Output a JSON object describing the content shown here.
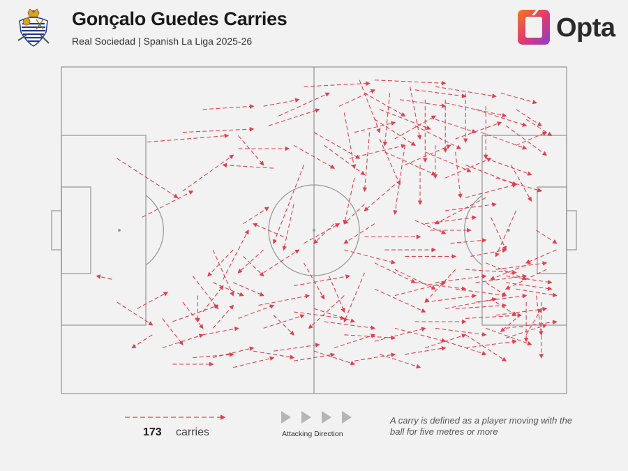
{
  "header": {
    "title": "Gonçalo Guedes Carries",
    "subtitle": "Real Sociedad | Spanish La Liga 2025-26",
    "brand": "Opta",
    "crest_icon": "real-sociedad-crest-icon",
    "brand_icon": "opta-logo-icon"
  },
  "legend": {
    "count": "173",
    "count_label": "carries",
    "direction_label": "Attacking Direction",
    "note": "A carry is defined as a player moving with the ball for five metres or more"
  },
  "colors": {
    "carry": "#e0404f",
    "pitch_line": "#9a9a9a",
    "background": "#f2f2f2",
    "direction_arrow": "#b5b5b5"
  },
  "chart_data": {
    "type": "scatter",
    "title": "Gonçalo Guedes Carries",
    "subtitle": "Real Sociedad | Spanish La Liga 2025-26",
    "total_carries": 173,
    "x_range": [
      0,
      100
    ],
    "y_range": [
      0,
      100
    ],
    "attacking_direction": "left-to-right",
    "grid": false,
    "carries": [
      [
        40,
        12,
        47,
        10
      ],
      [
        48,
        6,
        61,
        5
      ],
      [
        62,
        4,
        76,
        5
      ],
      [
        43,
        15,
        53,
        8
      ],
      [
        41,
        18,
        51,
        13
      ],
      [
        55,
        12,
        62,
        7
      ],
      [
        60,
        8,
        68,
        15
      ],
      [
        63,
        13,
        73,
        19
      ],
      [
        67,
        10,
        76,
        12
      ],
      [
        70,
        7,
        80,
        9
      ],
      [
        74,
        6,
        86,
        9
      ],
      [
        76,
        11,
        88,
        15
      ],
      [
        82,
        13,
        92,
        18
      ],
      [
        87,
        8,
        94,
        11
      ],
      [
        90,
        13,
        95,
        18
      ],
      [
        92,
        16,
        97,
        21
      ],
      [
        58,
        20,
        66,
        17
      ],
      [
        62,
        16,
        70,
        24
      ],
      [
        66,
        22,
        74,
        15
      ],
      [
        70,
        18,
        79,
        25
      ],
      [
        74,
        16,
        82,
        20
      ],
      [
        78,
        22,
        87,
        17
      ],
      [
        83,
        20,
        92,
        25
      ],
      [
        88,
        18,
        96,
        27
      ],
      [
        90,
        24,
        96,
        20
      ],
      [
        57,
        28,
        68,
        24
      ],
      [
        64,
        26,
        74,
        33
      ],
      [
        68,
        30,
        77,
        24
      ],
      [
        72,
        26,
        81,
        32
      ],
      [
        76,
        34,
        85,
        28
      ],
      [
        80,
        30,
        90,
        36
      ],
      [
        84,
        28,
        93,
        33
      ],
      [
        86,
        34,
        95,
        38
      ],
      [
        89,
        30,
        93,
        41
      ],
      [
        59,
        4,
        63,
        20
      ],
      [
        65,
        8,
        64,
        24
      ],
      [
        69,
        6,
        71,
        22
      ],
      [
        72,
        10,
        72,
        29
      ],
      [
        76,
        10,
        76,
        26
      ],
      [
        80,
        8,
        80,
        23
      ],
      [
        84,
        12,
        84,
        28
      ],
      [
        56,
        14,
        58,
        31
      ],
      [
        61,
        20,
        60,
        38
      ],
      [
        63,
        22,
        67,
        36
      ],
      [
        68,
        24,
        66,
        45
      ],
      [
        71,
        30,
        71,
        42
      ],
      [
        74,
        24,
        74,
        34
      ],
      [
        78,
        26,
        79,
        40
      ],
      [
        50,
        20,
        59,
        28
      ],
      [
        52,
        24,
        60,
        33
      ],
      [
        46,
        24,
        54,
        31
      ],
      [
        35,
        21,
        40,
        30
      ],
      [
        28,
        13,
        38,
        12
      ],
      [
        24,
        20,
        38,
        19
      ],
      [
        17,
        23,
        33,
        21
      ],
      [
        35,
        25,
        45,
        25
      ],
      [
        48,
        30,
        42,
        54
      ],
      [
        42,
        31,
        32,
        30
      ],
      [
        24,
        38,
        34,
        27
      ],
      [
        16,
        46,
        26,
        38
      ],
      [
        11,
        28,
        23,
        40
      ],
      [
        36,
        48,
        41,
        43
      ],
      [
        48,
        54,
        55,
        48
      ],
      [
        40,
        63,
        47,
        56
      ],
      [
        32,
        65,
        37,
        50
      ],
      [
        27,
        70,
        27,
        78
      ],
      [
        28,
        75,
        32,
        67
      ],
      [
        30,
        80,
        34,
        73
      ],
      [
        35,
        77,
        42,
        73
      ],
      [
        39,
        73,
        49,
        70
      ],
      [
        46,
        67,
        57,
        64
      ],
      [
        48,
        60,
        52,
        71
      ],
      [
        53,
        64,
        56,
        75
      ],
      [
        56,
        70,
        49,
        80
      ],
      [
        60,
        63,
        56,
        78
      ],
      [
        62,
        68,
        72,
        75
      ],
      [
        66,
        70,
        76,
        66
      ],
      [
        72,
        72,
        82,
        70
      ],
      [
        76,
        74,
        86,
        71
      ],
      [
        80,
        77,
        91,
        76
      ],
      [
        84,
        66,
        88,
        70
      ],
      [
        86,
        72,
        90,
        76
      ],
      [
        90,
        77,
        87,
        81
      ],
      [
        92,
        82,
        95,
        74
      ],
      [
        94,
        70,
        95,
        82
      ],
      [
        70,
        47,
        76,
        51
      ],
      [
        73,
        50,
        81,
        50
      ],
      [
        77,
        54,
        84,
        53
      ],
      [
        81,
        58,
        88,
        56
      ],
      [
        80,
        62,
        90,
        63
      ],
      [
        84,
        60,
        92,
        65
      ],
      [
        88,
        64,
        97,
        66
      ],
      [
        95,
        72,
        95,
        89
      ],
      [
        92,
        72,
        92,
        84
      ],
      [
        88,
        83,
        96,
        79
      ],
      [
        84,
        80,
        93,
        85
      ],
      [
        80,
        82,
        88,
        90
      ],
      [
        76,
        84,
        84,
        88
      ],
      [
        72,
        86,
        80,
        82
      ],
      [
        68,
        88,
        76,
        86
      ],
      [
        63,
        88,
        71,
        92
      ],
      [
        58,
        90,
        66,
        88
      ],
      [
        54,
        86,
        62,
        82
      ],
      [
        50,
        87,
        58,
        91
      ],
      [
        46,
        90,
        54,
        88
      ],
      [
        42,
        87,
        51,
        85
      ],
      [
        38,
        87,
        46,
        89
      ],
      [
        34,
        92,
        42,
        89
      ],
      [
        30,
        89,
        38,
        86
      ],
      [
        26,
        89,
        34,
        88
      ],
      [
        22,
        91,
        30,
        91
      ],
      [
        20,
        86,
        28,
        82
      ],
      [
        22,
        78,
        31,
        73
      ],
      [
        28,
        82,
        35,
        80
      ],
      [
        40,
        80,
        48,
        76
      ],
      [
        46,
        75,
        56,
        77
      ],
      [
        52,
        78,
        62,
        80
      ],
      [
        56,
        82,
        66,
        83
      ],
      [
        62,
        84,
        72,
        80
      ],
      [
        66,
        80,
        76,
        84
      ],
      [
        70,
        78,
        80,
        78
      ],
      [
        74,
        80,
        84,
        82
      ],
      [
        78,
        74,
        88,
        73
      ],
      [
        82,
        72,
        92,
        70
      ],
      [
        86,
        76,
        96,
        74
      ],
      [
        88,
        80,
        98,
        78
      ],
      [
        60,
        52,
        71,
        52
      ],
      [
        64,
        56,
        74,
        56
      ],
      [
        68,
        58,
        78,
        58
      ],
      [
        72,
        48,
        82,
        46
      ],
      [
        76,
        44,
        86,
        42
      ],
      [
        80,
        40,
        90,
        36
      ],
      [
        85,
        46,
        88,
        56
      ],
      [
        90,
        44,
        86,
        58
      ],
      [
        93,
        60,
        85,
        65
      ],
      [
        96,
        62,
        88,
        68
      ],
      [
        98,
        56,
        92,
        60
      ],
      [
        94,
        50,
        98,
        54
      ],
      [
        78,
        62,
        72,
        72
      ],
      [
        84,
        40,
        74,
        48
      ],
      [
        66,
        36,
        60,
        44
      ],
      [
        60,
        42,
        56,
        48
      ],
      [
        58,
        34,
        56,
        48
      ],
      [
        62,
        48,
        56,
        54
      ],
      [
        54,
        48,
        50,
        54
      ],
      [
        46,
        42,
        44,
        56
      ],
      [
        44,
        52,
        38,
        48
      ],
      [
        40,
        56,
        35,
        63
      ],
      [
        36,
        58,
        40,
        64
      ],
      [
        30,
        56,
        34,
        70
      ],
      [
        26,
        64,
        31,
        74
      ],
      [
        24,
        72,
        28,
        80
      ],
      [
        20,
        77,
        24,
        85
      ],
      [
        18,
        82,
        14,
        86
      ],
      [
        15,
        74,
        21,
        69
      ],
      [
        11,
        72,
        18,
        79
      ],
      [
        10,
        65,
        7,
        64
      ],
      [
        34,
        56,
        29,
        64
      ],
      [
        30,
        66,
        36,
        70
      ],
      [
        42,
        76,
        46,
        82
      ],
      [
        50,
        74,
        58,
        78
      ],
      [
        56,
        56,
        66,
        60
      ],
      [
        62,
        60,
        70,
        66
      ],
      [
        66,
        62,
        74,
        68
      ],
      [
        70,
        66,
        80,
        68
      ],
      [
        74,
        66,
        84,
        64
      ],
      [
        78,
        68,
        88,
        70
      ],
      [
        82,
        66,
        92,
        64
      ],
      [
        86,
        62,
        96,
        60
      ],
      [
        88,
        66,
        97,
        68
      ],
      [
        90,
        68,
        98,
        70
      ],
      [
        34,
        66,
        40,
        70
      ],
      [
        80,
        86,
        90,
        84
      ]
    ]
  }
}
